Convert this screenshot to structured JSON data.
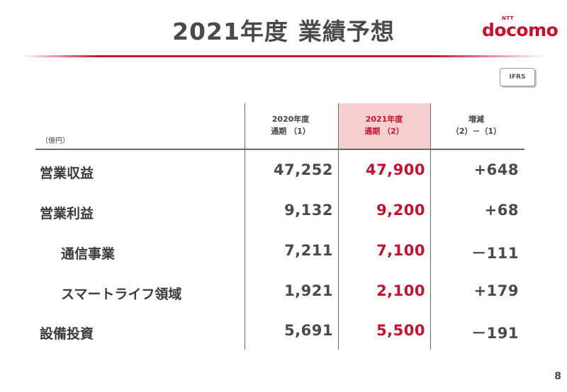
{
  "title": {
    "part1": "2021年度",
    "part2": "業績予想"
  },
  "logo": {
    "ntt": "NTT",
    "word": "docomo"
  },
  "badge": "IFRS",
  "unit": "（億円）",
  "columns": [
    {
      "line1": "2020年度",
      "line2": "通期 （1）"
    },
    {
      "line1": "2021年度",
      "line2": "通期 （2）"
    },
    {
      "line1": "増減",
      "line2": "（2）－（1）"
    }
  ],
  "rows": [
    {
      "label": "営業収益",
      "fy2020": "47,252",
      "fy2021": "47,900",
      "diff": "+648"
    },
    {
      "label": "営業利益",
      "fy2020": "9,132",
      "fy2021": "9,200",
      "diff": "+68"
    },
    {
      "label": "通信事業",
      "fy2020": "7,211",
      "fy2021": "7,100",
      "diff": "－111"
    },
    {
      "label": "スマートライフ領域",
      "fy2020": "1,921",
      "fy2021": "2,100",
      "diff": "+179"
    },
    {
      "label": "設備投資",
      "fy2020": "5,691",
      "fy2021": "5,500",
      "diff": "－191"
    }
  ],
  "page_number": "8",
  "colors": {
    "accent": "#c8102e",
    "highlight": "#f7cfd0",
    "text": "#4a4a4a"
  }
}
